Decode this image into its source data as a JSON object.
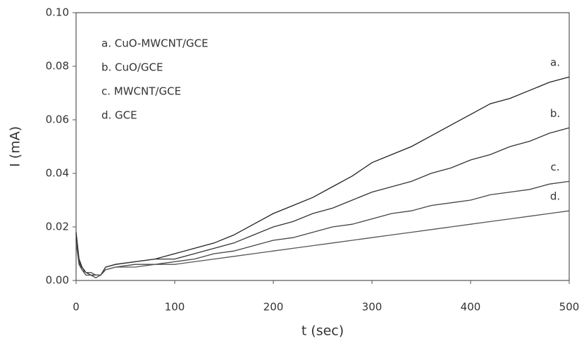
{
  "chart_data": {
    "type": "line",
    "x_label": "t (sec)",
    "y_label": "I (mA)",
    "x": [
      0,
      3,
      6,
      10,
      15,
      20,
      25,
      30,
      40,
      60,
      80,
      100,
      120,
      140,
      160,
      180,
      200,
      220,
      240,
      260,
      280,
      300,
      320,
      340,
      360,
      380,
      400,
      420,
      440,
      460,
      480,
      500
    ],
    "series": [
      {
        "name": "a. CuO-MWCNT/GCE",
        "label": "a.",
        "color": "#222222",
        "values": [
          0.018,
          0.008,
          0.005,
          0.003,
          0.003,
          0.002,
          0.002,
          0.005,
          0.006,
          0.007,
          0.008,
          0.01,
          0.012,
          0.014,
          0.017,
          0.021,
          0.025,
          0.028,
          0.031,
          0.035,
          0.039,
          0.044,
          0.047,
          0.05,
          0.054,
          0.058,
          0.062,
          0.066,
          0.068,
          0.071,
          0.074,
          0.076
        ]
      },
      {
        "name": "b. CuO/GCE",
        "label": "b.",
        "color": "#333333",
        "values": [
          0.016,
          0.007,
          0.004,
          0.003,
          0.002,
          0.002,
          0.002,
          0.005,
          0.006,
          0.007,
          0.008,
          0.008,
          0.01,
          0.012,
          0.014,
          0.017,
          0.02,
          0.022,
          0.025,
          0.027,
          0.03,
          0.033,
          0.035,
          0.037,
          0.04,
          0.042,
          0.045,
          0.047,
          0.05,
          0.052,
          0.055,
          0.057
        ]
      },
      {
        "name": "c. MWCNT/GCE",
        "label": "c.",
        "color": "#444444",
        "values": [
          0.015,
          0.006,
          0.004,
          0.002,
          0.002,
          0.001,
          0.002,
          0.004,
          0.005,
          0.006,
          0.006,
          0.007,
          0.008,
          0.01,
          0.011,
          0.013,
          0.015,
          0.016,
          0.018,
          0.02,
          0.021,
          0.023,
          0.025,
          0.026,
          0.028,
          0.029,
          0.03,
          0.032,
          0.033,
          0.034,
          0.036,
          0.037
        ]
      },
      {
        "name": "d. GCE",
        "label": "d.",
        "color": "#555555",
        "values": [
          0.014,
          0.006,
          0.004,
          0.003,
          0.003,
          0.002,
          0.002,
          0.004,
          0.005,
          0.005,
          0.006,
          0.006,
          0.007,
          0.008,
          0.009,
          0.01,
          0.011,
          0.012,
          0.013,
          0.014,
          0.015,
          0.016,
          0.017,
          0.018,
          0.019,
          0.02,
          0.021,
          0.022,
          0.023,
          0.024,
          0.025,
          0.026
        ]
      }
    ],
    "xlim": [
      0,
      500
    ],
    "xticks": [
      0,
      100,
      200,
      300,
      400,
      500
    ],
    "ylim": [
      0,
      0.1
    ],
    "yticks": [
      {
        "value": 0,
        "label": "0.00"
      },
      {
        "value": 0.02,
        "label": "0.02"
      },
      {
        "value": 0.04,
        "label": "0.04"
      },
      {
        "value": 0.06,
        "label": "0.06"
      },
      {
        "value": 0.08,
        "label": "0.08"
      },
      {
        "value": 0.1,
        "label": "0.10"
      }
    ],
    "legend": "top-left",
    "grid": false
  }
}
